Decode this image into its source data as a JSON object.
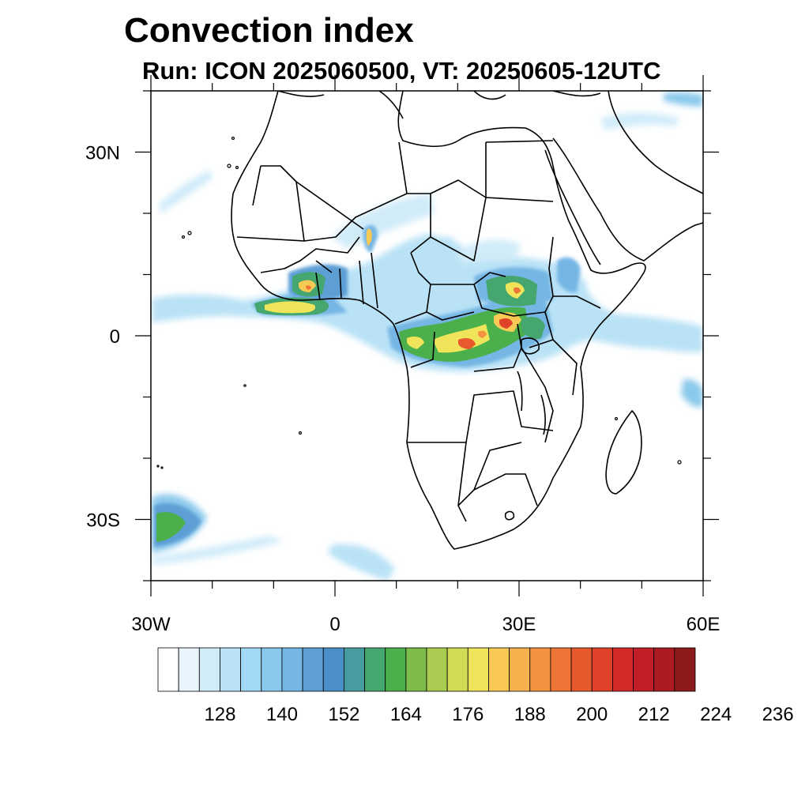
{
  "title": "Convection index",
  "subtitle": "Run: ICON 2025060500,  VT: 20250605-12UTC",
  "map": {
    "lon_range": [
      -30,
      60
    ],
    "lat_range": [
      -40,
      40
    ],
    "lon_ticks": [
      {
        "value": -30,
        "label": "30W"
      },
      {
        "value": 0,
        "label": "0"
      },
      {
        "value": 30,
        "label": "30E"
      },
      {
        "value": 60,
        "label": "60E"
      }
    ],
    "lat_ticks": [
      {
        "value": 30,
        "label": "30N"
      },
      {
        "value": 0,
        "label": "0"
      },
      {
        "value": -30,
        "label": "30S"
      }
    ],
    "minor_lon_step": 10,
    "minor_lat_step": 10,
    "land_fill": "#ffffff",
    "boundary_color": "#000000"
  },
  "colorbar": {
    "colors": [
      "#ffffff",
      "#e8f5fc",
      "#d1ecf9",
      "#b9e2f6",
      "#a1d8f3",
      "#8bc9ec",
      "#74b6e4",
      "#5d9fd5",
      "#4b8fc9",
      "#469c9e",
      "#45a66f",
      "#4bb04c",
      "#7dbb4b",
      "#a9cb4f",
      "#d3da55",
      "#f0e45a",
      "#f8ca55",
      "#f6b14f",
      "#f39340",
      "#ee7535",
      "#e85a2d",
      "#e04129",
      "#d32a29",
      "#c01f27",
      "#ac1a22",
      "#8c1a1a"
    ],
    "labels": [
      "128",
      "140",
      "152",
      "164",
      "176",
      "188",
      "200",
      "212",
      "224",
      "236"
    ],
    "label_start_edge": 3,
    "label_step": 3
  }
}
